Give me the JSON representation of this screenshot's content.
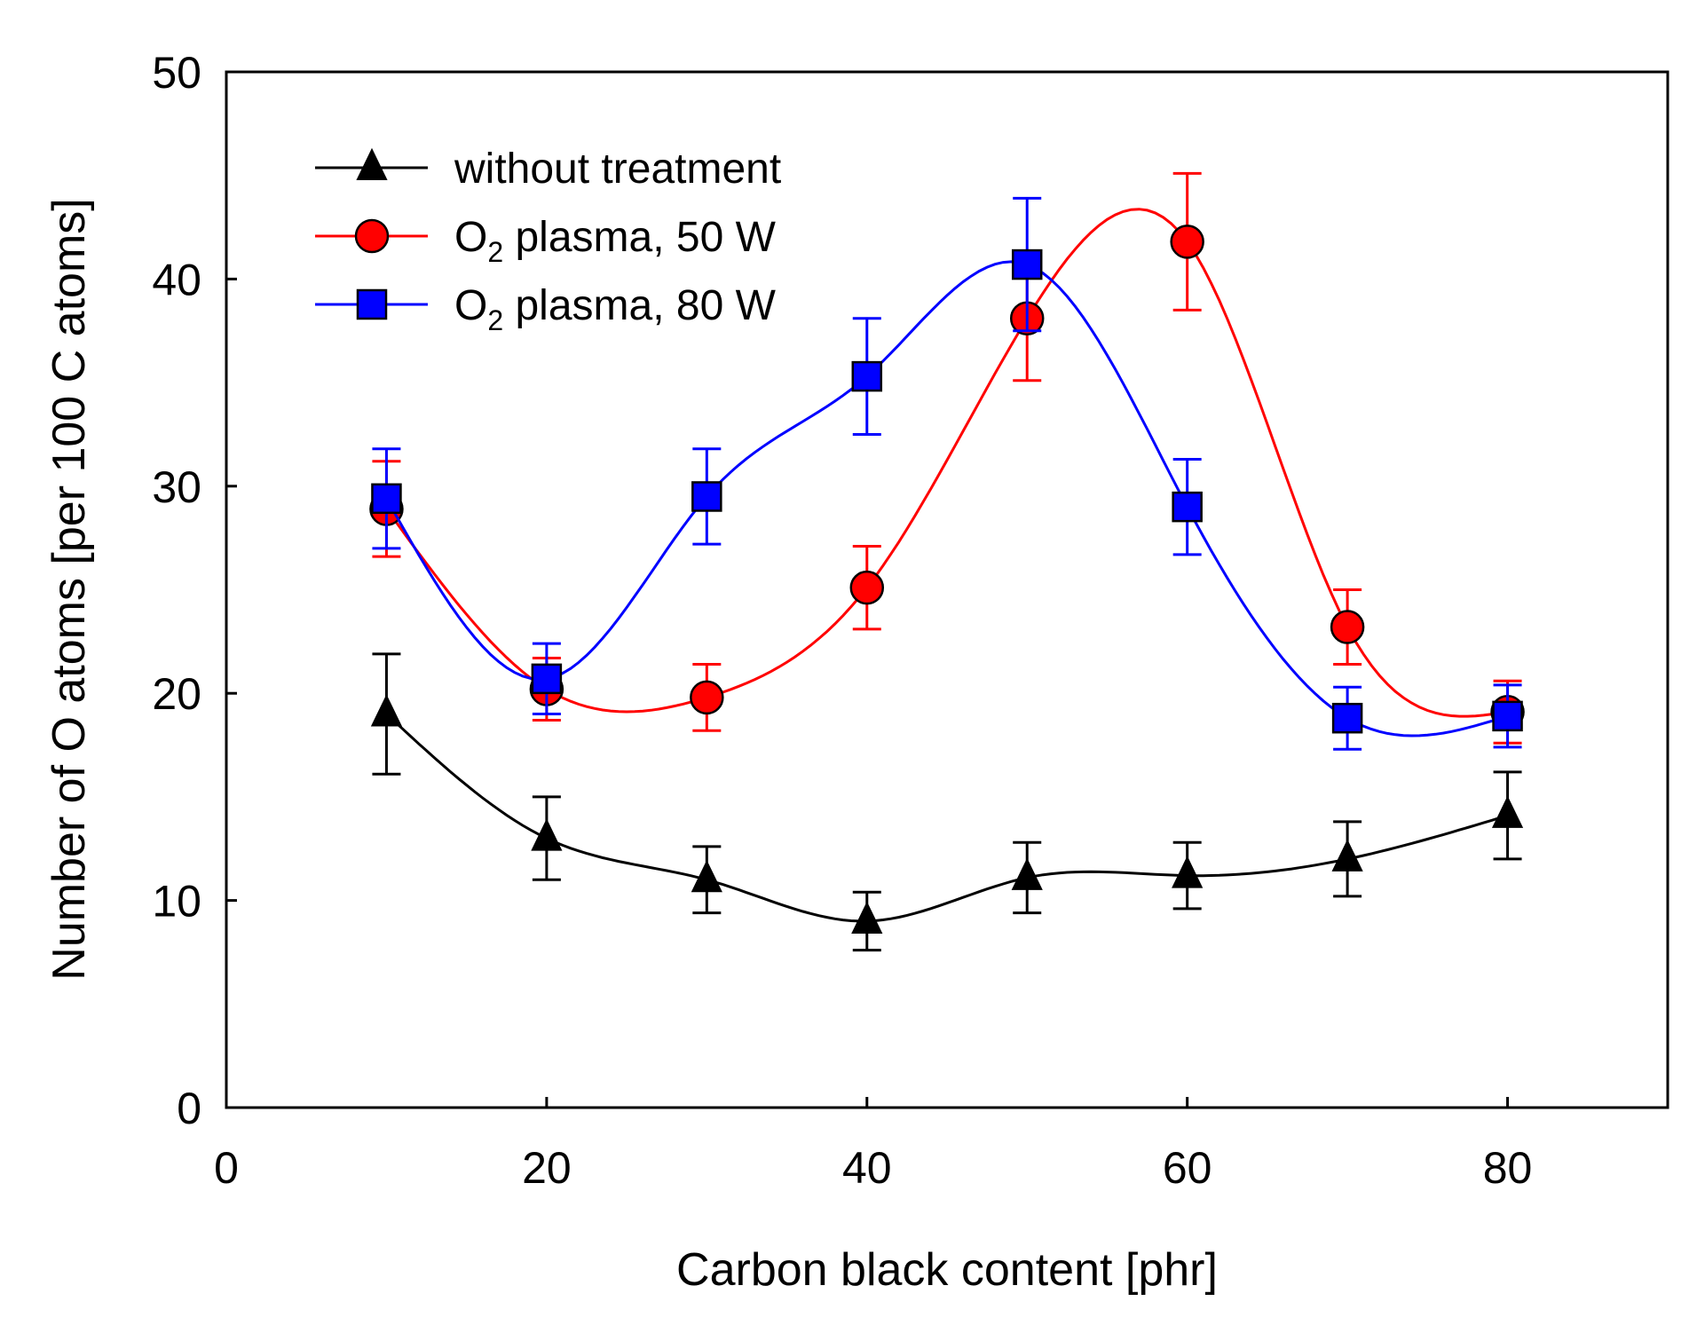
{
  "chart_data": {
    "type": "line",
    "title": "",
    "xlabel": "Carbon black content [phr]",
    "ylabel": "Number of O atoms [per 100 C atoms]",
    "xlim": [
      0,
      90
    ],
    "ylim": [
      0,
      50
    ],
    "xticks": [
      "0",
      "20",
      "40",
      "60",
      "80"
    ],
    "yticks": [
      "0",
      "10",
      "20",
      "30",
      "40",
      "50"
    ],
    "grid": false,
    "legend_position": "top-left",
    "x": [
      10,
      20,
      30,
      40,
      50,
      60,
      70,
      80
    ],
    "series": [
      {
        "name": "without treatment",
        "legend_main": "without treatment",
        "legend_sub": "",
        "legend_rest": "",
        "color": "#000000",
        "marker": "triangle",
        "values": [
          19.0,
          13.0,
          11.0,
          9.0,
          11.1,
          11.2,
          12.0,
          14.1
        ],
        "errors": [
          2.9,
          2.0,
          1.6,
          1.4,
          1.7,
          1.6,
          1.8,
          2.1
        ]
      },
      {
        "name": "O2 plasma, 50 W",
        "legend_main": "O",
        "legend_sub": "2",
        "legend_rest": " plasma, 50 W",
        "color": "#ff0000",
        "marker": "circle",
        "values": [
          28.9,
          20.2,
          19.8,
          25.1,
          38.1,
          41.8,
          23.2,
          19.1
        ],
        "errors": [
          2.3,
          1.5,
          1.6,
          2.0,
          3.0,
          3.3,
          1.8,
          1.5
        ]
      },
      {
        "name": "O2 plasma, 80 W",
        "legend_main": "O",
        "legend_sub": "2",
        "legend_rest": " plasma, 80 W",
        "color": "#0000ff",
        "marker": "square",
        "values": [
          29.4,
          20.7,
          29.5,
          35.3,
          40.7,
          29.0,
          18.8,
          18.9
        ],
        "errors": [
          2.4,
          1.7,
          2.3,
          2.8,
          3.2,
          2.3,
          1.5,
          1.5
        ]
      }
    ]
  }
}
